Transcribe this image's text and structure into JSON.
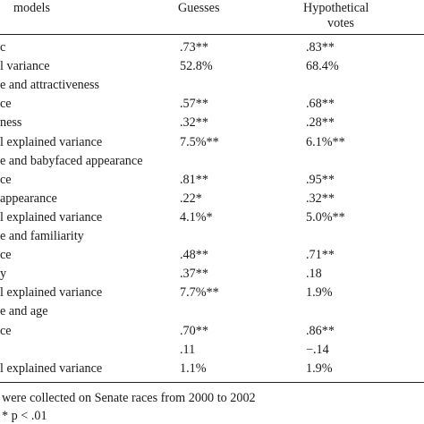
{
  "header": {
    "col0": "models",
    "col1": "Guesses",
    "col2_line1": "Hypothetical",
    "col2_line2": "votes"
  },
  "rows": [
    {
      "label": "c",
      "guesses": ".73**",
      "votes": ".83**"
    },
    {
      "label": "l variance",
      "guesses": "52.8%",
      "votes": "68.4%"
    },
    {
      "label": "e and attractiveness",
      "guesses": "",
      "votes": ""
    },
    {
      "label": "ce",
      "guesses": ".57**",
      "votes": ".68**"
    },
    {
      "label": "ness",
      "guesses": ".32**",
      "votes": ".28**"
    },
    {
      "label": "l explained variance",
      "guesses": "7.5%**",
      "votes": "6.1%**"
    },
    {
      "label": "e and babyfaced appearance",
      "guesses": "",
      "votes": ""
    },
    {
      "label": "ce",
      "guesses": ".81**",
      "votes": ".95**"
    },
    {
      "label": "appearance",
      "guesses": ".22*",
      "votes": ".32**"
    },
    {
      "label": "l explained variance",
      "guesses": "4.1%*",
      "votes": "5.0%**"
    },
    {
      "label": "e and familiarity",
      "guesses": "",
      "votes": ""
    },
    {
      "label": "ce",
      "guesses": ".48**",
      "votes": ".71**"
    },
    {
      "label": "y",
      "guesses": ".37**",
      "votes": ".18"
    },
    {
      "label": "l explained variance",
      "guesses": "7.7%**",
      "votes": "1.9%"
    },
    {
      "label": "e and age",
      "guesses": "",
      "votes": ""
    },
    {
      "label": "ce",
      "guesses": ".70**",
      "votes": ".86**"
    },
    {
      "label": "",
      "guesses": ".11",
      "votes": "−.14"
    },
    {
      "label": "l explained variance",
      "guesses": "1.1%",
      "votes": "1.9%"
    }
  ],
  "footnotes": {
    "line1": "were collected on Senate races from 2000 to 2002",
    "line2": "* p < .01"
  }
}
